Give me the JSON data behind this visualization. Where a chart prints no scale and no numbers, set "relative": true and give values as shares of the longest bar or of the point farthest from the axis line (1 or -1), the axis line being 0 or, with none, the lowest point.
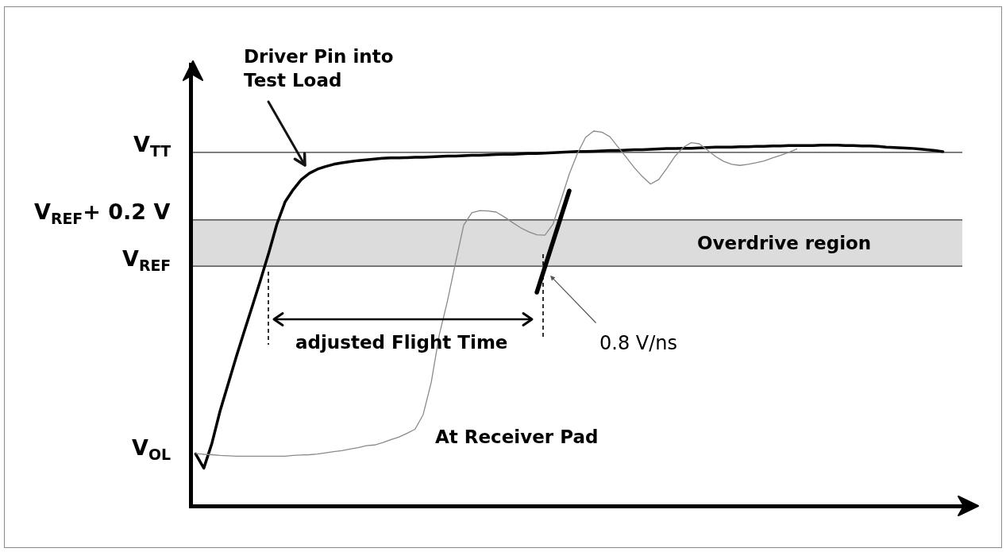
{
  "chart_data": {
    "type": "line",
    "relative": true,
    "categories": [
      null,
      null,
      null,
      null,
      null,
      null,
      null,
      null,
      null,
      null,
      null,
      null,
      null,
      null,
      null,
      null,
      null,
      null,
      null,
      null,
      null,
      null,
      null,
      null,
      null,
      null,
      null,
      null,
      null,
      null,
      null,
      null,
      null,
      null,
      null,
      null,
      null,
      null,
      null,
      null,
      null,
      null,
      null,
      null,
      null,
      null,
      null,
      null,
      null,
      null,
      null,
      null,
      null,
      null,
      null,
      null,
      null,
      null,
      null,
      null,
      null,
      null,
      null,
      null,
      null,
      null,
      null,
      null,
      null,
      null,
      null,
      null,
      null,
      null,
      null,
      null,
      null,
      null,
      null,
      null,
      null,
      null,
      null,
      null,
      null,
      null,
      null,
      null,
      null,
      null,
      null,
      null,
      null
    ],
    "series": [
      {
        "name": "Driver Pin into Test Load",
        "color": "#000000",
        "values": [
          0.135,
          0.097,
          0.164,
          0.25,
          0.323,
          0.396,
          0.465,
          0.533,
          0.602,
          0.674,
          0.751,
          0.81,
          0.843,
          0.87,
          0.887,
          0.898,
          0.905,
          0.911,
          0.915,
          0.918,
          0.921,
          0.923,
          0.925,
          0.927,
          0.928,
          0.928,
          0.929,
          0.93,
          0.93,
          0.931,
          0.932,
          0.933,
          0.933,
          0.934,
          0.935,
          0.935,
          0.936,
          0.937,
          0.938,
          0.938,
          0.939,
          0.94,
          0.94,
          0.941,
          0.942,
          0.943,
          0.944,
          0.945,
          0.945,
          0.946,
          0.947,
          0.948,
          0.948,
          0.949,
          0.95,
          0.95,
          0.951,
          0.952,
          0.953,
          0.953,
          0.954,
          0.954,
          0.955,
          0.956,
          0.957,
          0.957,
          0.957,
          0.958,
          0.958,
          0.959,
          0.959,
          0.96,
          0.96,
          0.961,
          0.961,
          0.961,
          0.961,
          0.962,
          0.962,
          0.962,
          0.961,
          0.961,
          0.96,
          0.96,
          0.959,
          0.957,
          0.956,
          0.955,
          0.954,
          0.952,
          0.95,
          0.948,
          0.945
        ]
      },
      {
        "name": "At Receiver Pad",
        "color": "#8a8a8a",
        "values": [
          0.136,
          0.134,
          0.133,
          0.131,
          0.13,
          0.129,
          0.129,
          0.129,
          0.129,
          0.129,
          0.129,
          0.129,
          0.131,
          0.132,
          0.133,
          0.135,
          0.138,
          0.141,
          0.144,
          0.148,
          0.152,
          0.157,
          0.159,
          0.165,
          0.173,
          0.18,
          0.19,
          0.201,
          0.24,
          0.327,
          0.455,
          0.545,
          0.648,
          0.748,
          0.781,
          0.787,
          0.786,
          0.783,
          0.77,
          0.755,
          0.741,
          0.73,
          0.722,
          0.721,
          0.751,
          0.817,
          0.885,
          0.94,
          0.983,
          1.0,
          0.997,
          0.985,
          0.957,
          0.93,
          0.902,
          0.878,
          0.858,
          0.87,
          0.9,
          0.932,
          0.956,
          0.969,
          0.966,
          0.949,
          0.932,
          0.919,
          0.911,
          0.908,
          0.911,
          0.915,
          0.92,
          0.928,
          0.935,
          0.943,
          0.952,
          null,
          null,
          null,
          null,
          null,
          null,
          null,
          null,
          null,
          null,
          null,
          null,
          null,
          null,
          null,
          null,
          null,
          null
        ]
      },
      {
        "color": "#000000",
        "values": [
          null,
          null,
          null,
          null,
          null,
          null,
          null,
          null,
          null,
          null,
          null,
          null,
          null,
          null,
          null,
          null,
          null,
          null,
          null,
          null,
          null,
          null,
          null,
          null,
          null,
          null,
          null,
          null,
          null,
          null,
          null,
          null,
          null,
          null,
          null,
          null,
          null,
          null,
          null,
          null,
          null,
          null,
          0.568,
          0.636,
          0.704,
          0.772,
          0.84,
          null,
          null,
          null,
          null,
          null,
          null,
          null,
          null,
          null,
          null,
          null,
          null,
          null,
          null,
          null,
          null,
          null,
          null,
          null,
          null,
          null,
          null,
          null,
          null,
          null,
          null,
          null,
          null,
          null,
          null,
          null,
          null,
          null,
          null,
          null,
          null,
          null,
          null,
          null,
          null,
          null,
          null,
          null,
          null,
          null,
          null
        ]
      }
    ],
    "ref_lines": [
      {
        "axis": "y",
        "value": 0.943,
        "label": "V$_{TT}$",
        "color": "#333333"
      },
      {
        "axis": "y",
        "value": 0.762,
        "label": "V$_{REF}$+ 0.2 V",
        "color": "#333333"
      },
      {
        "axis": "y",
        "value": 0.638,
        "label": "V$_{REF}$",
        "color": "#333333"
      }
    ],
    "bands": [
      {
        "axis": "y",
        "from": 0.638,
        "to": 0.762,
        "label": "Overdrive region",
        "color": "#dcdcdc"
      }
    ],
    "annotations": [
      "V$_{OL}$",
      "adjusted Flight Time",
      "0.8 V/ns"
    ]
  }
}
